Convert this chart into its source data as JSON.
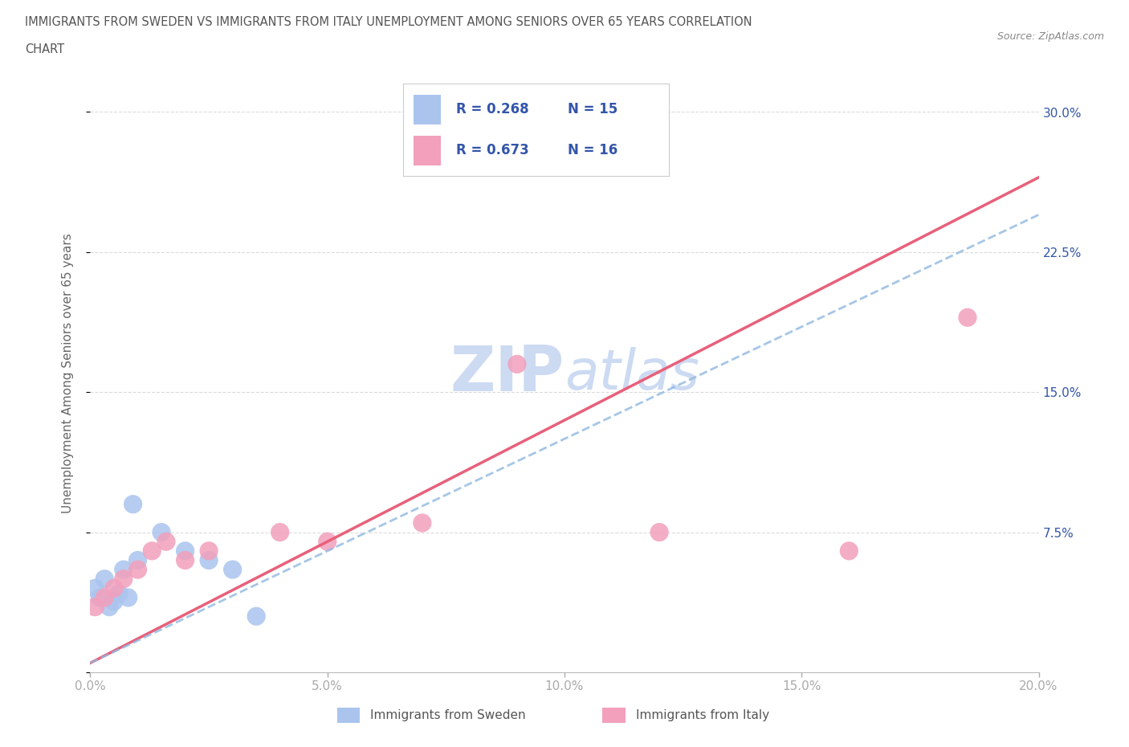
{
  "title_line1": "IMMIGRANTS FROM SWEDEN VS IMMIGRANTS FROM ITALY UNEMPLOYMENT AMONG SENIORS OVER 65 YEARS CORRELATION",
  "title_line2": "CHART",
  "source": "Source: ZipAtlas.com",
  "ylabel": "Unemployment Among Seniors over 65 years",
  "xlim": [
    0.0,
    0.2
  ],
  "ylim": [
    0.0,
    0.32
  ],
  "x_ticks": [
    0.0,
    0.05,
    0.1,
    0.15,
    0.2
  ],
  "y_ticks": [
    0.0,
    0.075,
    0.15,
    0.225,
    0.3
  ],
  "x_tick_labels": [
    "0.0%",
    "5.0%",
    "10.0%",
    "15.0%",
    "20.0%"
  ],
  "y_tick_labels_right": [
    "",
    "7.5%",
    "15.0%",
    "22.5%",
    "30.0%"
  ],
  "sweden_R": 0.268,
  "sweden_N": 15,
  "italy_R": 0.673,
  "italy_N": 16,
  "sweden_color": "#aac4ee",
  "italy_color": "#f2a0bc",
  "italy_line_color": "#e8607a",
  "sweden_line_color": "#90b8e0",
  "watermark_color": "#ccdaf2",
  "background_color": "#ffffff",
  "grid_color": "#d8d8d8",
  "sweden_scatter_x": [
    0.001,
    0.002,
    0.003,
    0.004,
    0.005,
    0.006,
    0.007,
    0.008,
    0.009,
    0.01,
    0.015,
    0.02,
    0.025,
    0.03,
    0.035
  ],
  "sweden_scatter_y": [
    0.045,
    0.04,
    0.05,
    0.035,
    0.038,
    0.042,
    0.055,
    0.04,
    0.09,
    0.06,
    0.075,
    0.065,
    0.06,
    0.055,
    0.03
  ],
  "italy_scatter_x": [
    0.001,
    0.003,
    0.005,
    0.007,
    0.01,
    0.013,
    0.016,
    0.02,
    0.025,
    0.04,
    0.05,
    0.07,
    0.09,
    0.12,
    0.16,
    0.185
  ],
  "italy_scatter_y": [
    0.035,
    0.04,
    0.045,
    0.05,
    0.055,
    0.065,
    0.07,
    0.06,
    0.065,
    0.075,
    0.07,
    0.08,
    0.165,
    0.075,
    0.065,
    0.19
  ],
  "italy_line_x0": 0.0,
  "italy_line_y0": 0.005,
  "italy_line_x1": 0.2,
  "italy_line_y1": 0.265,
  "sweden_line_x0": 0.0,
  "sweden_line_y0": 0.005,
  "sweden_line_x1": 0.2,
  "sweden_line_y1": 0.245
}
